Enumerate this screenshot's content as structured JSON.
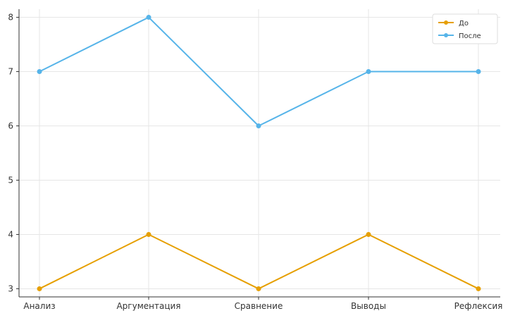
{
  "chart_data": {
    "type": "line",
    "title": "",
    "xlabel": "",
    "ylabel": "",
    "categories": [
      "Анализ",
      "Аргументация",
      "Сравнение",
      "Выводы",
      "Рефлексия"
    ],
    "series": [
      {
        "name": "До",
        "values": [
          3,
          4,
          3,
          4,
          3
        ],
        "color": "#E69F00"
      },
      {
        "name": "После",
        "values": [
          7,
          8,
          6,
          7,
          7
        ],
        "color": "#56B4E9"
      }
    ],
    "ylim": [
      2.85,
      8.15
    ],
    "yticks": [
      3,
      4,
      5,
      6,
      7,
      8
    ],
    "grid": true,
    "legend_position": "top-right"
  }
}
